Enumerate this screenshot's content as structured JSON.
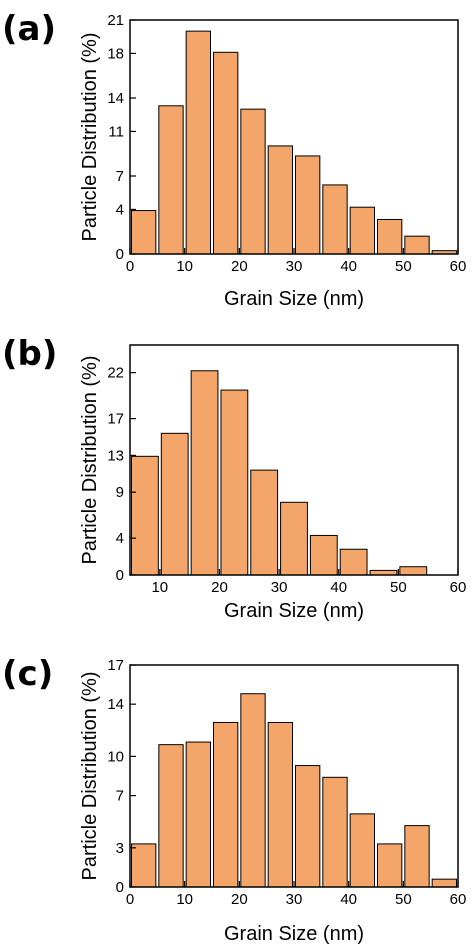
{
  "colors": {
    "bar_fill": "#F4A66A",
    "axis": "#000000"
  },
  "chart_data": [
    {
      "type": "bar",
      "panel_label": "(a)",
      "xlabel": "Grain Size (nm)",
      "ylabel": "Particle Distribution (%)",
      "xlim": [
        0,
        60
      ],
      "ylim": [
        0,
        21
      ],
      "xticks": [
        "0",
        "10",
        "20",
        "30",
        "40",
        "50",
        "60"
      ],
      "yticks": [
        "0",
        "4",
        "7",
        "11",
        "14",
        "18",
        "21"
      ],
      "bin_width": 5,
      "x": [
        2.5,
        7.5,
        12.5,
        17.5,
        22.5,
        27.5,
        32.5,
        37.5,
        42.5,
        47.5,
        52.5,
        57.5
      ],
      "values": [
        3.9,
        13.3,
        20.0,
        18.1,
        13.0,
        9.7,
        8.8,
        6.2,
        4.2,
        3.1,
        1.6,
        0.3
      ]
    },
    {
      "type": "bar",
      "panel_label": "(b)",
      "xlabel": "Grain Size (nm)",
      "ylabel": "Particle Distribution (%)",
      "xlim": [
        5,
        60
      ],
      "ylim": [
        0,
        25
      ],
      "xticks": [
        "10",
        "20",
        "30",
        "40",
        "50",
        "60"
      ],
      "yticks": [
        "0",
        "4",
        "9",
        "13",
        "17",
        "22"
      ],
      "bin_width": 5,
      "x": [
        7.5,
        12.5,
        17.5,
        22.5,
        27.5,
        32.5,
        37.5,
        42.5,
        47.5,
        52.5,
        57.5
      ],
      "values": [
        12.9,
        15.4,
        22.2,
        20.1,
        11.4,
        7.9,
        4.3,
        2.8,
        0.5,
        0.9,
        0.0
      ]
    },
    {
      "type": "bar",
      "panel_label": "(c)",
      "xlabel": "Grain Size (nm)",
      "ylabel": "Particle Distribution (%)",
      "xlim": [
        0,
        60
      ],
      "ylim": [
        0,
        17
      ],
      "xticks": [
        "0",
        "10",
        "20",
        "30",
        "40",
        "50",
        "60"
      ],
      "yticks": [
        "0",
        "3",
        "7",
        "10",
        "14",
        "17"
      ],
      "bin_width": 5,
      "x": [
        2.5,
        7.5,
        12.5,
        17.5,
        22.5,
        27.5,
        32.5,
        37.5,
        42.5,
        47.5,
        52.5,
        57.5
      ],
      "values": [
        3.3,
        10.9,
        11.1,
        12.6,
        14.8,
        12.6,
        9.3,
        8.4,
        5.6,
        3.3,
        4.7,
        0.6
      ]
    }
  ]
}
